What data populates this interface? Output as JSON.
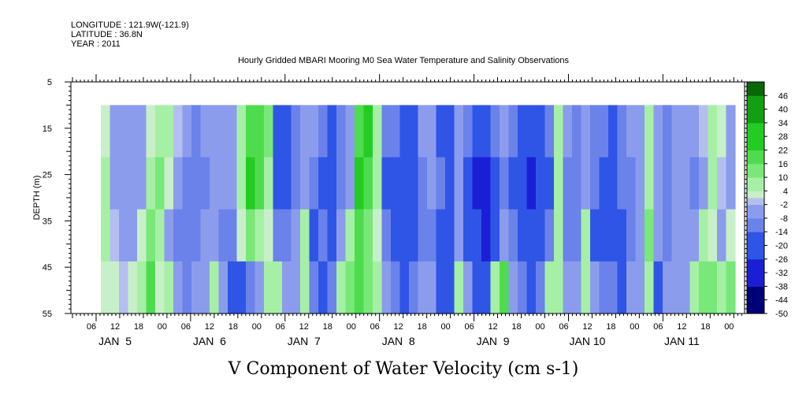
{
  "header": {
    "longitude": "LONGITUDE : 121.9W(-121.9)",
    "latitude": "LATITUDE : 36.8N",
    "year": "YEAR : 2011"
  },
  "chart_data": {
    "type": "heatmap",
    "title": "Hourly Gridded MBARI Mooring M0 Sea Water Temperature and Salinity Observations",
    "subtitle": "V Component of Water Velocity (cm s-1)",
    "ylabel": "DEPTH (m)",
    "xlabel": "",
    "y_axis": {
      "range": [
        5,
        55
      ],
      "inverted": true,
      "ticks": [
        5,
        15,
        25,
        35,
        45,
        55
      ]
    },
    "x_axis": {
      "hour_labels": [
        "06",
        "12",
        "18",
        "00",
        "06",
        "12",
        "18",
        "00",
        "06",
        "12",
        "18",
        "00",
        "06",
        "12",
        "18",
        "00",
        "06",
        "12",
        "18",
        "00",
        "06",
        "12",
        "18",
        "00",
        "06",
        "12",
        "18",
        "00"
      ],
      "day_labels": [
        "JAN  5",
        "JAN  6",
        "JAN  7",
        "JAN  8",
        "JAN  9",
        "JAN 10",
        "JAN 11"
      ]
    },
    "data_extent": {
      "depth_top": 10,
      "depth_bottom": 55
    },
    "colorbar": {
      "levels": [
        46,
        40,
        34,
        28,
        22,
        16,
        10,
        4,
        -2,
        -8,
        -14,
        -20,
        -26,
        -32,
        -38,
        -44,
        -50
      ],
      "min": -50,
      "max": 52
    },
    "colors": {
      "negative_strong": "#1a1fd6",
      "negative_weak": "#aab6ea",
      "near_zero": "#a6f0a6",
      "positive_strong": "#1ed21e"
    },
    "columns": [
      [
        2,
        4,
        6,
        3
      ],
      [
        -4,
        -3,
        -2,
        2
      ],
      [
        -6,
        -8,
        -4,
        -2
      ],
      [
        -6,
        -7,
        -3,
        2
      ],
      [
        -5,
        -3,
        3,
        6
      ],
      [
        3,
        6,
        14,
        18
      ],
      [
        8,
        10,
        8,
        2
      ],
      [
        4,
        0,
        -6,
        5
      ],
      [
        -2,
        -6,
        -10,
        -4
      ],
      [
        -8,
        -9,
        -14,
        -12
      ],
      [
        -10,
        -14,
        -12,
        -8
      ],
      [
        -6,
        -12,
        -8,
        -3
      ],
      [
        -4,
        -6,
        -4,
        4
      ],
      [
        -6,
        -8,
        -12,
        -6
      ],
      [
        -8,
        -6,
        -14,
        -20
      ],
      [
        6,
        8,
        2,
        -26
      ],
      [
        18,
        24,
        14,
        -12
      ],
      [
        20,
        16,
        8,
        -8
      ],
      [
        12,
        6,
        2,
        4
      ],
      [
        -16,
        -18,
        -12,
        6
      ],
      [
        -20,
        -24,
        -14,
        -8
      ],
      [
        -10,
        -12,
        -6,
        -4
      ],
      [
        -4,
        -3,
        4,
        6
      ],
      [
        -8,
        -10,
        -16,
        -12
      ],
      [
        -12,
        -18,
        -14,
        -20
      ],
      [
        -16,
        -24,
        -20,
        -10
      ],
      [
        -10,
        -12,
        -6,
        4
      ],
      [
        -6,
        -3,
        4,
        10
      ],
      [
        20,
        22,
        18,
        16
      ],
      [
        24,
        18,
        12,
        14
      ],
      [
        8,
        4,
        2,
        6
      ],
      [
        -10,
        -16,
        -12,
        -4
      ],
      [
        -14,
        -20,
        -18,
        -10
      ],
      [
        -20,
        -26,
        -24,
        -18
      ],
      [
        -16,
        -22,
        -20,
        -14
      ],
      [
        -8,
        -12,
        -10,
        -6
      ],
      [
        -6,
        -8,
        -10,
        -8
      ],
      [
        -16,
        -14,
        -18,
        -20
      ],
      [
        -18,
        -22,
        -20,
        -16
      ],
      [
        -4,
        -6,
        -8,
        4
      ],
      [
        -10,
        -18,
        -16,
        -8
      ],
      [
        -22,
        -28,
        -24,
        -16
      ],
      [
        -26,
        -30,
        -28,
        -20
      ],
      [
        -14,
        -18,
        -16,
        6
      ],
      [
        -8,
        -10,
        -6,
        16
      ],
      [
        -12,
        -16,
        -14,
        -4
      ],
      [
        -22,
        -26,
        -22,
        -14
      ],
      [
        -24,
        -28,
        -26,
        -18
      ],
      [
        -20,
        -24,
        -20,
        -12
      ],
      [
        -14,
        -16,
        -12,
        4
      ],
      [
        4,
        6,
        8,
        6
      ],
      [
        -4,
        -10,
        -12,
        -4
      ],
      [
        -10,
        -14,
        -12,
        -6
      ],
      [
        -8,
        -6,
        4,
        6
      ],
      [
        -12,
        -14,
        -16,
        -6
      ],
      [
        -14,
        -16,
        -18,
        -12
      ],
      [
        -16,
        -18,
        -20,
        -14
      ],
      [
        -12,
        -14,
        -16,
        -24
      ],
      [
        -8,
        -10,
        -12,
        -8
      ],
      [
        -6,
        -4,
        -6,
        -4
      ],
      [
        6,
        8,
        10,
        6
      ],
      [
        -4,
        -6,
        -4,
        -20
      ],
      [
        -10,
        -12,
        -10,
        -8
      ],
      [
        -6,
        -8,
        -6,
        -4
      ],
      [
        -4,
        -6,
        -8,
        -6
      ],
      [
        -8,
        -10,
        -6,
        4
      ],
      [
        -2,
        -4,
        6,
        10
      ],
      [
        4,
        6,
        2,
        14
      ],
      [
        2,
        -2,
        -6,
        8
      ],
      [
        -6,
        -4,
        2,
        12
      ]
    ]
  }
}
